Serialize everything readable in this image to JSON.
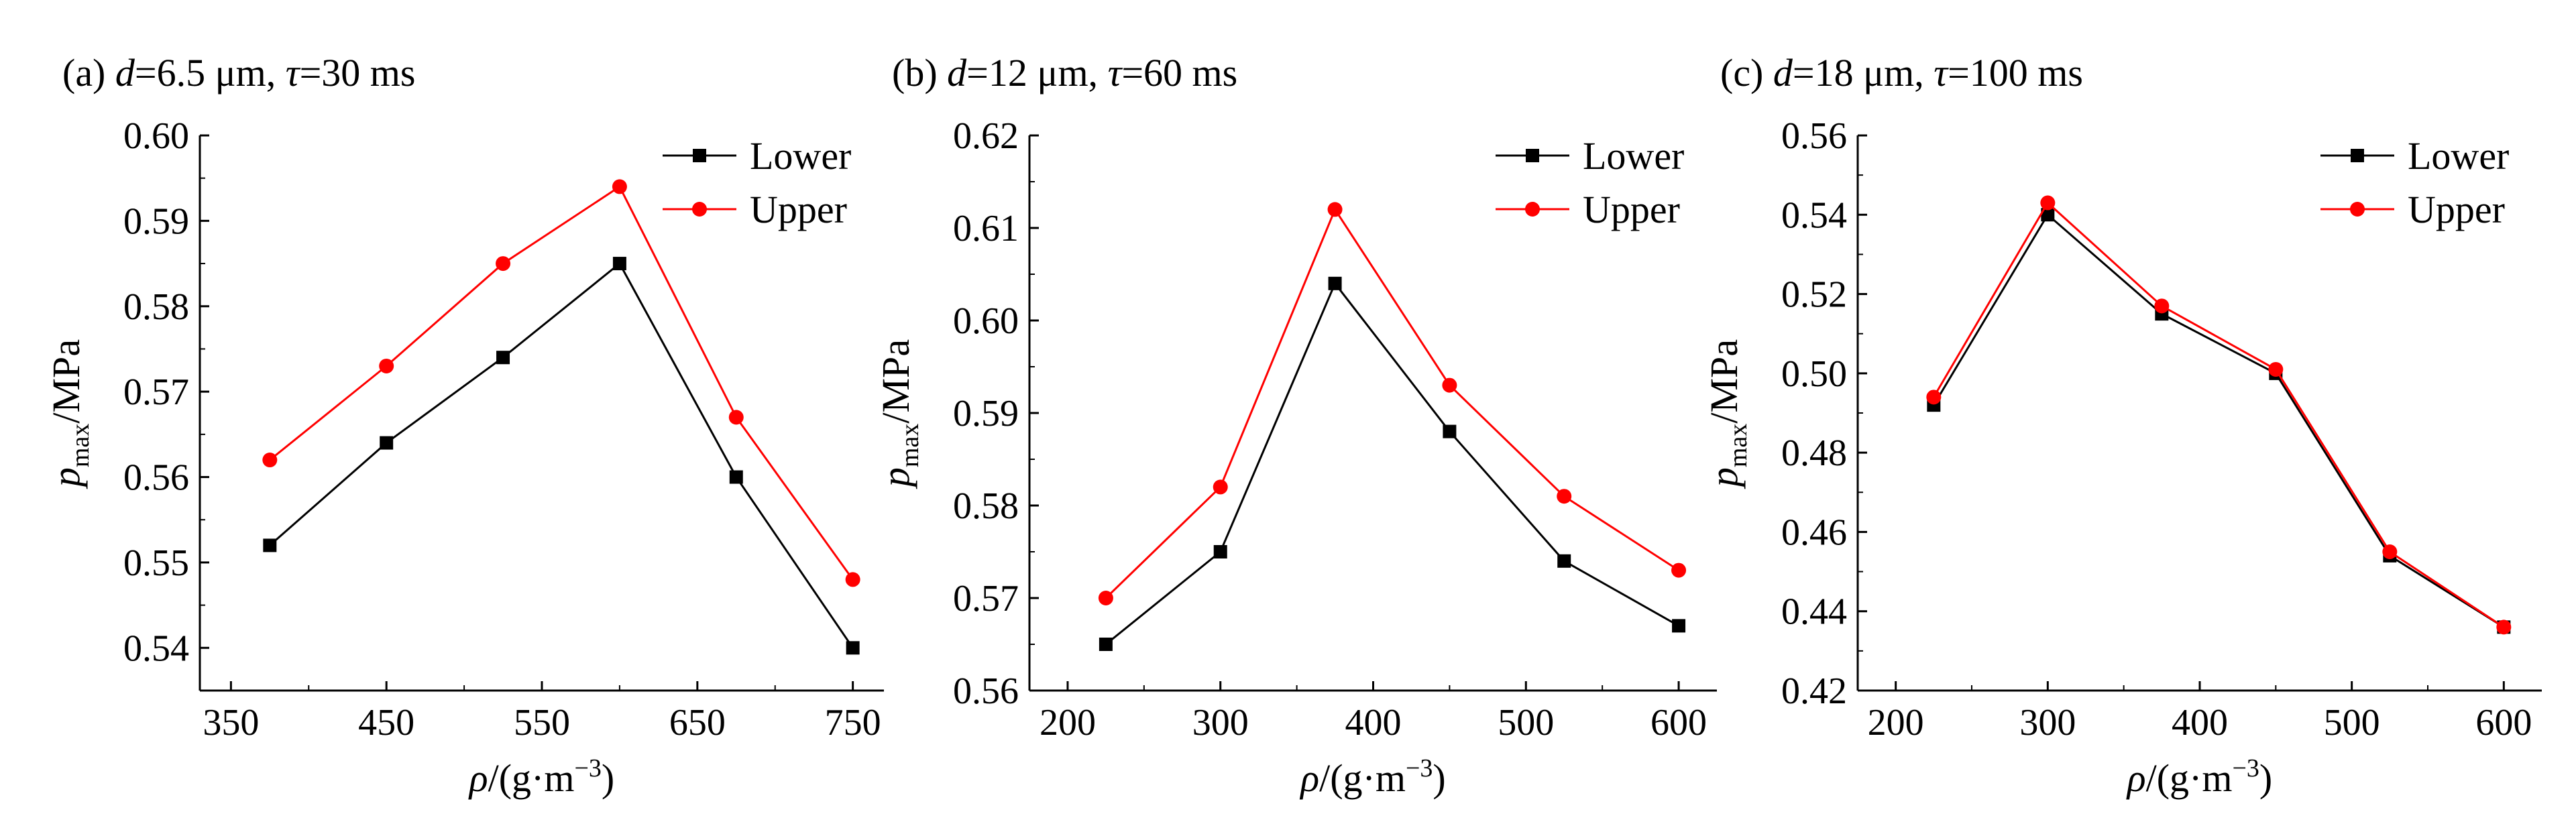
{
  "chart_data": [
    {
      "type": "line",
      "panel": "(a)",
      "title_prefix": "(a) ",
      "title_var1": "d",
      "title_val1": "=6.5 μm, ",
      "title_var2": "τ",
      "title_val2": "=30 ms",
      "xlabel_main": "ρ",
      "xlabel_rest": "/(g·m",
      "xlabel_exp": "−3",
      "xlabel_close": ")",
      "ylabel_main": "p",
      "ylabel_sub": "max",
      "ylabel_rest": "/MPa",
      "xlim": [
        330,
        770
      ],
      "ylim": [
        0.535,
        0.6
      ],
      "xticks": [
        350,
        450,
        550,
        650,
        750
      ],
      "xtick_labels": [
        "350",
        "450",
        "550",
        "650",
        "750"
      ],
      "yticks": [
        0.54,
        0.55,
        0.56,
        0.57,
        0.58,
        0.59,
        0.6
      ],
      "ytick_labels": [
        "0.54",
        "0.55",
        "0.56",
        "0.57",
        "0.58",
        "0.59",
        "0.60"
      ],
      "x": [
        375,
        450,
        525,
        600,
        675,
        750
      ],
      "series": [
        {
          "name": "Lower",
          "color": "#000000",
          "marker": "square",
          "values": [
            0.552,
            0.564,
            0.574,
            0.585,
            0.56,
            0.54
          ]
        },
        {
          "name": "Upper",
          "color": "#ff0000",
          "marker": "circle",
          "values": [
            0.562,
            0.573,
            0.585,
            0.594,
            0.567,
            0.548
          ]
        }
      ],
      "legend_position": "top-right",
      "grid": false
    },
    {
      "type": "line",
      "panel": "(b)",
      "title_prefix": "(b) ",
      "title_var1": "d",
      "title_val1": "=12 μm, ",
      "title_var2": "τ",
      "title_val2": "=60 ms",
      "xlabel_main": "ρ",
      "xlabel_rest": "/(g·m",
      "xlabel_exp": "−3",
      "xlabel_close": ")",
      "ylabel_main": "p",
      "ylabel_sub": "max",
      "ylabel_rest": "/MPa",
      "xlim": [
        175,
        625
      ],
      "ylim": [
        0.56,
        0.62
      ],
      "xticks": [
        200,
        300,
        400,
        500,
        600
      ],
      "xtick_labels": [
        "200",
        "300",
        "400",
        "500",
        "600"
      ],
      "yticks": [
        0.56,
        0.57,
        0.58,
        0.59,
        0.6,
        0.61,
        0.62
      ],
      "ytick_labels": [
        "0.56",
        "0.57",
        "0.58",
        "0.59",
        "0.60",
        "0.61",
        "0.62"
      ],
      "x": [
        225,
        300,
        375,
        450,
        525,
        600
      ],
      "series": [
        {
          "name": "Lower",
          "color": "#000000",
          "marker": "square",
          "values": [
            0.565,
            0.575,
            0.604,
            0.588,
            0.574,
            0.567
          ]
        },
        {
          "name": "Upper",
          "color": "#ff0000",
          "marker": "circle",
          "values": [
            0.57,
            0.582,
            0.612,
            0.593,
            0.581,
            0.573
          ]
        }
      ],
      "legend_position": "top-right",
      "grid": false
    },
    {
      "type": "line",
      "panel": "(c)",
      "title_prefix": "(c) ",
      "title_var1": "d",
      "title_val1": "=18 μm, ",
      "title_var2": "τ",
      "title_val2": "=100 ms",
      "xlabel_main": "ρ",
      "xlabel_rest": "/(g·m",
      "xlabel_exp": "−3",
      "xlabel_close": ")",
      "ylabel_main": "p",
      "ylabel_sub": "max",
      "ylabel_rest": "/MPa",
      "xlim": [
        175,
        625
      ],
      "ylim": [
        0.42,
        0.56
      ],
      "xticks": [
        200,
        300,
        400,
        500,
        600
      ],
      "xtick_labels": [
        "200",
        "300",
        "400",
        "500",
        "600"
      ],
      "yticks": [
        0.42,
        0.44,
        0.46,
        0.48,
        0.5,
        0.52,
        0.54,
        0.56
      ],
      "ytick_labels": [
        "0.42",
        "0.44",
        "0.46",
        "0.48",
        "0.50",
        "0.52",
        "0.54",
        "0.56"
      ],
      "x": [
        225,
        300,
        375,
        450,
        525,
        600
      ],
      "series": [
        {
          "name": "Lower",
          "color": "#000000",
          "marker": "square",
          "values": [
            0.492,
            0.54,
            0.515,
            0.5,
            0.454,
            0.436
          ]
        },
        {
          "name": "Upper",
          "color": "#ff0000",
          "marker": "circle",
          "values": [
            0.494,
            0.543,
            0.517,
            0.501,
            0.455,
            0.436
          ]
        }
      ],
      "legend_position": "top-right",
      "grid": false
    }
  ]
}
